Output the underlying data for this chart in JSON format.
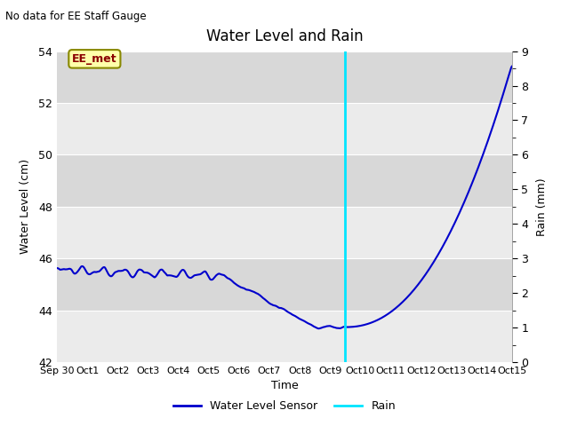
{
  "title": "Water Level and Rain",
  "subtitle": "No data for EE Staff Gauge",
  "xlabel": "Time",
  "ylabel_left": "Water Level (cm)",
  "ylabel_right": "Rain (mm)",
  "ylim_left": [
    42,
    54
  ],
  "ylim_right": [
    0.0,
    9.0
  ],
  "yticks_left": [
    42,
    44,
    46,
    48,
    50,
    52,
    54
  ],
  "yticks_right": [
    0.0,
    1.0,
    2.0,
    3.0,
    4.0,
    5.0,
    6.0,
    7.0,
    8.0,
    9.0
  ],
  "yticks_right_minor": [
    0.5,
    1.5,
    2.5,
    3.5,
    4.5,
    5.5,
    6.5,
    7.5,
    8.5
  ],
  "background_color_light": "#ebebeb",
  "background_color_dark": "#d8d8d8",
  "line_color": "#0000cc",
  "rain_color": "#00e5ff",
  "legend_label_water": "Water Level Sensor",
  "legend_label_rain": "Rain",
  "annotation_label": "EE_met",
  "rain_line_x": 9.5,
  "xlim": [
    0,
    15
  ],
  "xtick_labels": [
    "Sep 30",
    "Oct 1",
    "Oct 2",
    "Oct 3",
    "Oct 4",
    "Oct 5",
    "Oct 6",
    "Oct 7",
    "Oct 8",
    "Oct 9",
    "Oct 10",
    "Oct 11",
    "Oct 12",
    "Oct 13",
    "Oct 14",
    "Oct 15"
  ],
  "xtick_positions": [
    0,
    1,
    2,
    3,
    4,
    5,
    6,
    7,
    8,
    9,
    10,
    11,
    12,
    13,
    14,
    15
  ]
}
